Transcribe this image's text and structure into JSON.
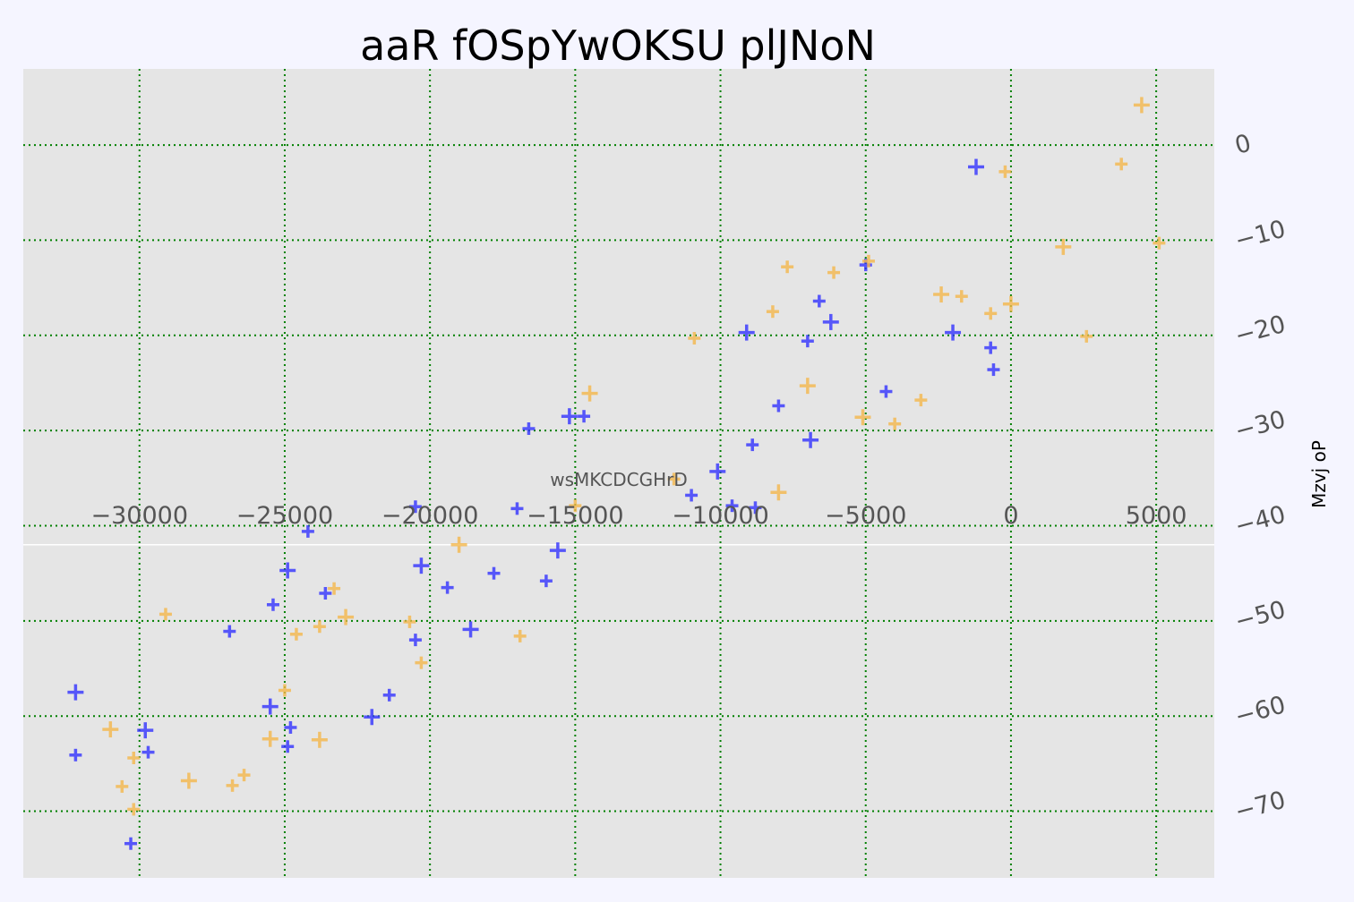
{
  "chart_data": {
    "type": "scatter",
    "title": "aaR fOSpYwOKSU plJNoN",
    "xlabel": "wsMKCDCGHrD",
    "ylabel": "Mzvj oP",
    "xlim": [
      -34000,
      7000
    ],
    "ylim": [
      -77,
      8
    ],
    "xticks": [
      -30000,
      -25000,
      -20000,
      -15000,
      -10000,
      -5000,
      0,
      5000
    ],
    "xtick_labels": [
      "−30000",
      "−25000",
      "−20000",
      "−15000",
      "−10000",
      "−5000",
      "0",
      "5000"
    ],
    "yticks": [
      0,
      -10,
      -20,
      -30,
      -40,
      -50,
      -60,
      -70
    ],
    "ytick_labels": [
      "0",
      "−10",
      "−20",
      "−30",
      "−40",
      "−50",
      "−60",
      "−70"
    ],
    "x_axis_position_y": -42,
    "grid": true,
    "grid_style": "dotted",
    "colors": {
      "background": "#f5f5ff",
      "plot_background": "#e5e5e5",
      "grid": "#008000",
      "series_a": "#3333ff",
      "series_b": "#f5b84c"
    },
    "marker": "plus",
    "series": [
      {
        "color": "#3333ff",
        "points": [
          [
            -1200,
            -2.3
          ],
          [
            -600,
            -23.6
          ],
          [
            -700,
            -21.3
          ],
          [
            -2000,
            -19.7
          ],
          [
            -4300,
            -25.9
          ],
          [
            -5000,
            -12.6
          ],
          [
            -6200,
            -18.6
          ],
          [
            -6600,
            -16.4
          ],
          [
            -7000,
            -20.6
          ],
          [
            -6900,
            -31.0
          ],
          [
            -8000,
            -27.4
          ],
          [
            -8900,
            -31.5
          ],
          [
            -9100,
            -19.7
          ],
          [
            -8800,
            -38.1
          ],
          [
            -9600,
            -37.9
          ],
          [
            -10100,
            -34.3
          ],
          [
            -11000,
            -36.8
          ],
          [
            -14700,
            -28.5
          ],
          [
            -15200,
            -28.5
          ],
          [
            -16600,
            -29.8
          ],
          [
            -17000,
            -38.2
          ],
          [
            -15600,
            -42.6
          ],
          [
            -16000,
            -45.8
          ],
          [
            -17800,
            -45.0
          ],
          [
            -18600,
            -50.9
          ],
          [
            -19400,
            -46.5
          ],
          [
            -20500,
            -38.0
          ],
          [
            -20300,
            -44.2
          ],
          [
            -20500,
            -52.0
          ],
          [
            -21400,
            -57.8
          ],
          [
            -22000,
            -60.1
          ],
          [
            -24200,
            -40.6
          ],
          [
            -23600,
            -47.1
          ],
          [
            -24900,
            -44.7
          ],
          [
            -25400,
            -48.3
          ],
          [
            -26900,
            -51.1
          ],
          [
            -25500,
            -59.0
          ],
          [
            -24800,
            -61.2
          ],
          [
            -24900,
            -63.2
          ],
          [
            -29800,
            -61.5
          ],
          [
            -29700,
            -63.8
          ],
          [
            -30300,
            -73.4
          ],
          [
            -32200,
            -57.5
          ],
          [
            -32200,
            -64.1
          ]
        ]
      },
      {
        "color": "#f5b84c",
        "points": [
          [
            4500,
            4.2
          ],
          [
            3800,
            -2.0
          ],
          [
            5100,
            -10.3
          ],
          [
            1800,
            -10.7
          ],
          [
            2600,
            -20.1
          ],
          [
            -200,
            -2.8
          ],
          [
            0,
            -16.7
          ],
          [
            -700,
            -17.7
          ],
          [
            -1700,
            -15.9
          ],
          [
            -2400,
            -15.7
          ],
          [
            -3100,
            -26.8
          ],
          [
            -4000,
            -29.3
          ],
          [
            -5100,
            -28.6
          ],
          [
            -4900,
            -12.2
          ],
          [
            -6100,
            -13.4
          ],
          [
            -7000,
            -25.3
          ],
          [
            -7700,
            -12.8
          ],
          [
            -8200,
            -17.5
          ],
          [
            -8000,
            -36.5
          ],
          [
            -10900,
            -20.3
          ],
          [
            -11600,
            -35.1
          ],
          [
            -14500,
            -26.1
          ],
          [
            -15000,
            -37.9
          ],
          [
            -16900,
            -51.6
          ],
          [
            -19000,
            -42.0
          ],
          [
            -20300,
            -54.4
          ],
          [
            -20700,
            -50.1
          ],
          [
            -22900,
            -49.6
          ],
          [
            -23300,
            -46.6
          ],
          [
            -23800,
            -50.6
          ],
          [
            -23800,
            -62.5
          ],
          [
            -24600,
            -51.4
          ],
          [
            -25000,
            -57.3
          ],
          [
            -25500,
            -62.4
          ],
          [
            -26400,
            -66.2
          ],
          [
            -26800,
            -67.3
          ],
          [
            -28300,
            -66.8
          ],
          [
            -29100,
            -49.3
          ],
          [
            -30200,
            -64.4
          ],
          [
            -31000,
            -61.4
          ],
          [
            -30600,
            -67.4
          ],
          [
            -30200,
            -69.8
          ]
        ]
      }
    ]
  }
}
